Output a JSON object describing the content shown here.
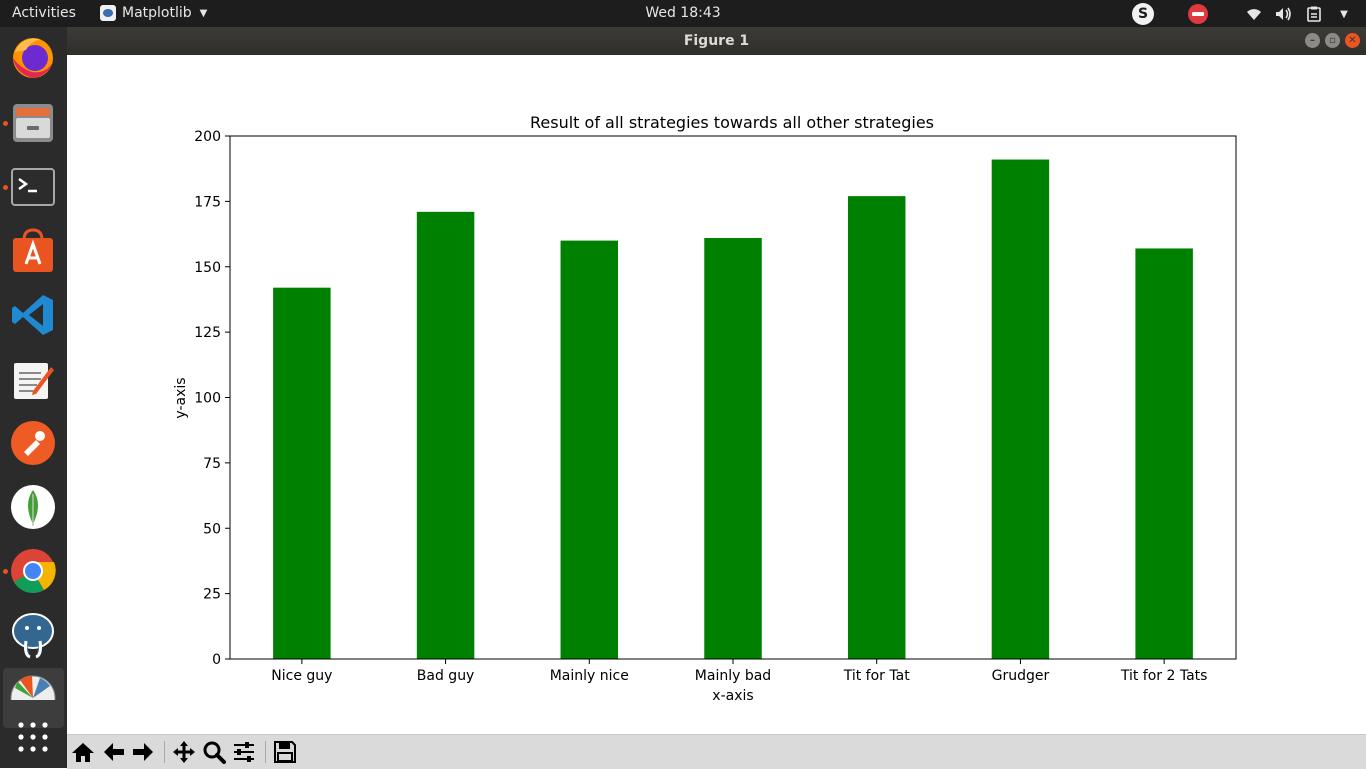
{
  "topbar": {
    "activities": "Activities",
    "app_name": "Matplotlib",
    "clock": "Wed 18:43",
    "tray_icons": [
      "skype-icon",
      "no-entry-icon",
      "wifi-icon",
      "volume-icon",
      "clipboard-icon",
      "system-menu-icon"
    ]
  },
  "window": {
    "title": "Figure 1"
  },
  "dock": {
    "items": [
      "firefox",
      "files",
      "terminal",
      "software-center",
      "vscode",
      "text-editor",
      "postman",
      "mongodb-compass",
      "chrome",
      "pgadmin",
      "matplotlib",
      "show-applications"
    ]
  },
  "toolbar": {
    "buttons": [
      "home",
      "back",
      "forward",
      "pan",
      "zoom",
      "configure-subplots",
      "save"
    ]
  },
  "colors": {
    "bar": "#008000",
    "accent": "#e95420"
  },
  "chart_data": {
    "type": "bar",
    "title": "Result of all strategies towards all other strategies",
    "xlabel": "x-axis",
    "ylabel": "y-axis",
    "categories": [
      "Nice guy",
      "Bad guy",
      "Mainly nice",
      "Mainly bad",
      "Tit for Tat",
      "Grudger",
      "Tit for 2 Tats"
    ],
    "values": [
      142,
      171,
      160,
      161,
      177,
      191,
      157
    ],
    "ylim": [
      0,
      200
    ],
    "yticks": [
      0,
      25,
      50,
      75,
      100,
      125,
      150,
      175,
      200
    ],
    "grid": false,
    "legend": false
  }
}
